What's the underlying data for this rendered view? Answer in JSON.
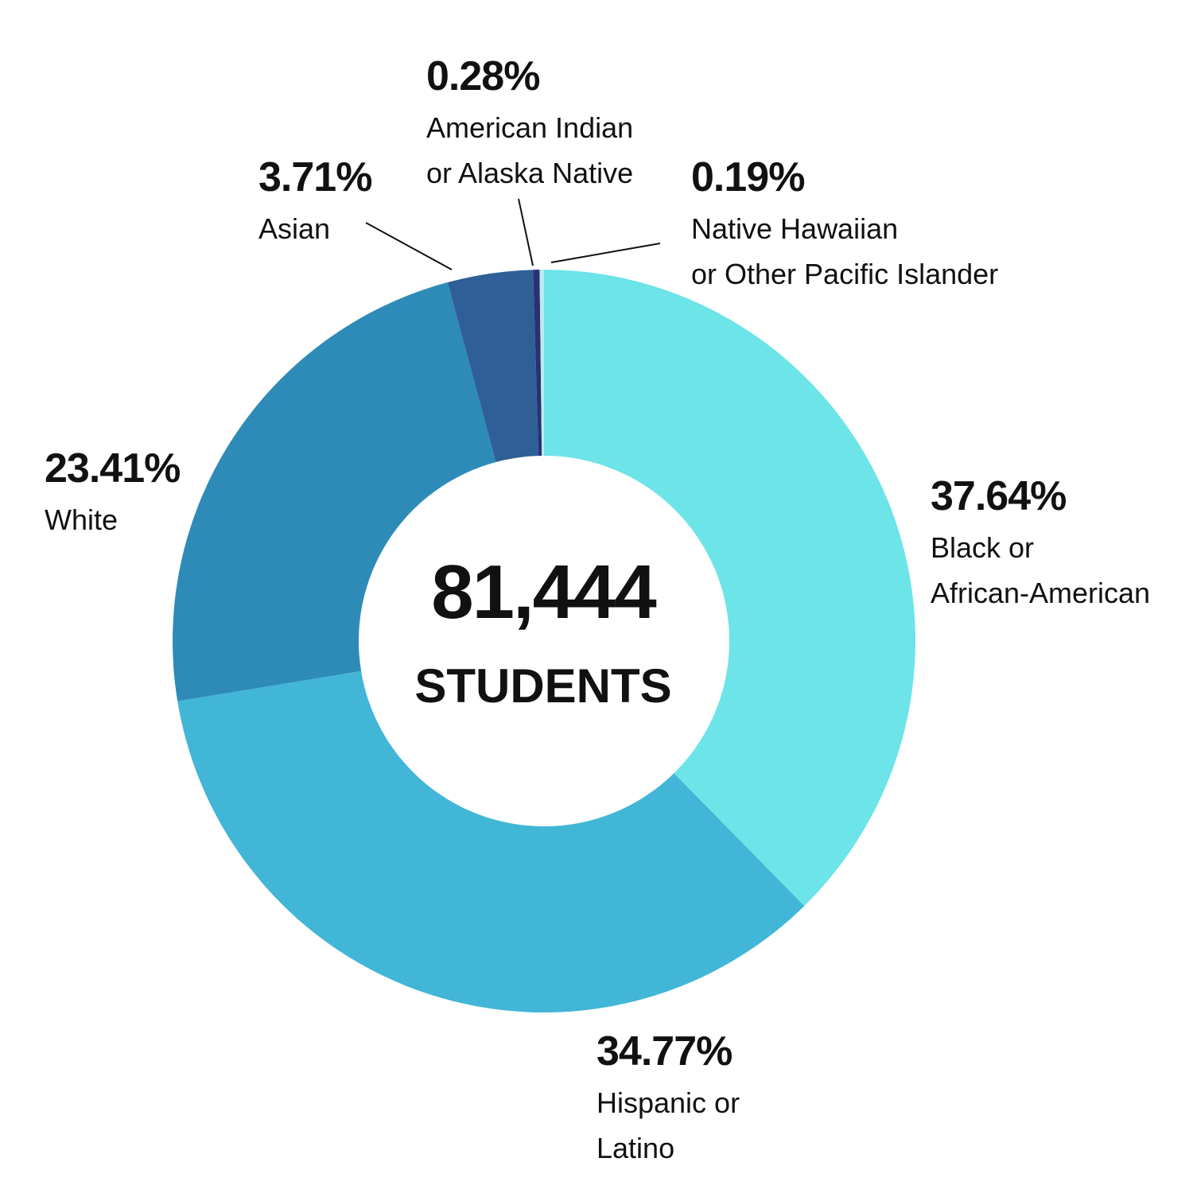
{
  "chart_data": {
    "type": "pie",
    "donut": true,
    "center_value": "81,444",
    "center_label": "STUDENTS",
    "slices": [
      {
        "id": "black",
        "label_lines": [
          "Black or",
          "African-American"
        ],
        "value": 37.64,
        "value_label": "37.64%",
        "color": "#6ce4e8"
      },
      {
        "id": "hispanic",
        "label_lines": [
          "Hispanic or",
          "Latino"
        ],
        "value": 34.77,
        "value_label": "34.77%",
        "color": "#42b6d6"
      },
      {
        "id": "white",
        "label_lines": [
          "White"
        ],
        "value": 23.41,
        "value_label": "23.41%",
        "color": "#2e8bb8"
      },
      {
        "id": "asian",
        "label_lines": [
          "Asian"
        ],
        "value": 3.71,
        "value_label": "3.71%",
        "color": "#2f5f97"
      },
      {
        "id": "american-indian",
        "label_lines": [
          "American Indian",
          "or Alaska Native"
        ],
        "value": 0.28,
        "value_label": "0.28%",
        "color": "#2a3170"
      },
      {
        "id": "native-hawaiian",
        "label_lines": [
          "Native Hawaiian",
          "or Other Pacific Islander"
        ],
        "value": 0.19,
        "value_label": "0.19%",
        "color": "#b9ecef"
      }
    ]
  }
}
